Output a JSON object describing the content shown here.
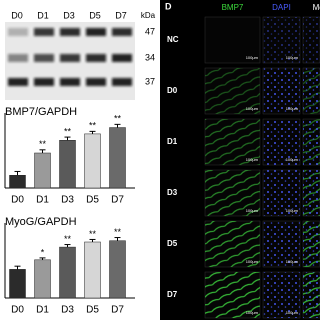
{
  "panel_label": "D",
  "blot": {
    "lanes": [
      "D0",
      "D1",
      "D3",
      "D5",
      "D7"
    ],
    "unit": "kDa",
    "sizes": [
      "47",
      "34",
      "37"
    ]
  },
  "chart_data": [
    {
      "type": "bar",
      "title": "BMP7/GAPDH",
      "categories": [
        "D0",
        "D1",
        "D3",
        "D5",
        "D7"
      ],
      "values": [
        0.2,
        0.55,
        0.75,
        0.85,
        0.95
      ],
      "errors": [
        0.06,
        0.05,
        0.05,
        0.04,
        0.05
      ],
      "annotations": [
        null,
        "**",
        "**",
        "**",
        "**"
      ],
      "colors": [
        "#2b2b2b",
        "#9a9a9a",
        "#5a5a5a",
        "#d6d6d6",
        "#6a6a6a"
      ],
      "ylim": [
        0,
        1.1
      ]
    },
    {
      "type": "bar",
      "title": "MyoG/GAPDH",
      "categories": [
        "D0",
        "D1",
        "D3",
        "D5",
        "D7"
      ],
      "values": [
        0.45,
        0.6,
        0.8,
        0.88,
        0.9
      ],
      "errors": [
        0.05,
        0.03,
        0.04,
        0.04,
        0.05
      ],
      "annotations": [
        null,
        "*",
        "**",
        "**",
        "**"
      ],
      "colors": [
        "#2b2b2b",
        "#9a9a9a",
        "#5a5a5a",
        "#d6d6d6",
        "#6a6a6a"
      ],
      "ylim": [
        0,
        1.1
      ]
    }
  ],
  "microscopy": {
    "columns": [
      "BMP7",
      "DAPI",
      "Mer"
    ],
    "column_colors": [
      "#3ddc3d",
      "#4a5cff",
      "#ffffff"
    ],
    "rows": [
      "NC",
      "D0",
      "D1",
      "D3",
      "D5",
      "D7"
    ],
    "scale": "100μm"
  }
}
